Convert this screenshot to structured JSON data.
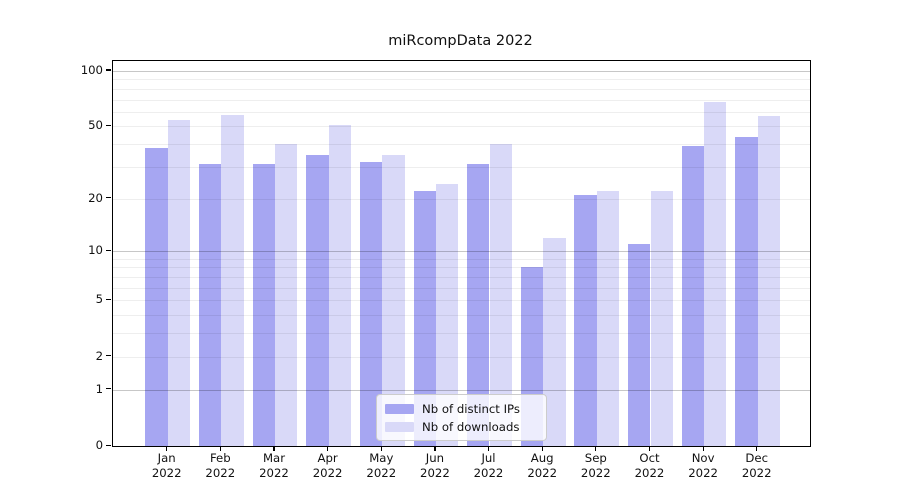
{
  "chart_data": {
    "type": "bar",
    "title": "miRcompData 2022",
    "categories": [
      "Jan",
      "Feb",
      "Mar",
      "Apr",
      "May",
      "Jun",
      "Jul",
      "Aug",
      "Sep",
      "Oct",
      "Nov",
      "Dec"
    ],
    "x_sublabel_year": "2022",
    "series": [
      {
        "name": "Nb of distinct IPs",
        "color": "#a6a6f2",
        "values": [
          38,
          31,
          31,
          35,
          32,
          22,
          31,
          8,
          21,
          11,
          39,
          44
        ]
      },
      {
        "name": "Nb of downloads",
        "color": "#d9d9f8",
        "values": [
          54,
          58,
          40,
          51,
          35,
          24,
          40,
          12,
          22,
          22,
          68,
          57
        ]
      }
    ],
    "y_scale": "log1p",
    "y_ticks": [
      0,
      1,
      2,
      5,
      10,
      20,
      50,
      100
    ],
    "y_minor_gridlines": [
      2,
      3,
      4,
      5,
      6,
      7,
      8,
      9,
      20,
      30,
      40,
      50,
      60,
      70,
      80,
      90
    ],
    "y_decade_gridlines": [
      1,
      10,
      100
    ],
    "ylim": [
      0,
      113
    ],
    "grid": "on",
    "legend_position": "lower center",
    "axis_color": "#000000",
    "text_color": "#111111"
  }
}
